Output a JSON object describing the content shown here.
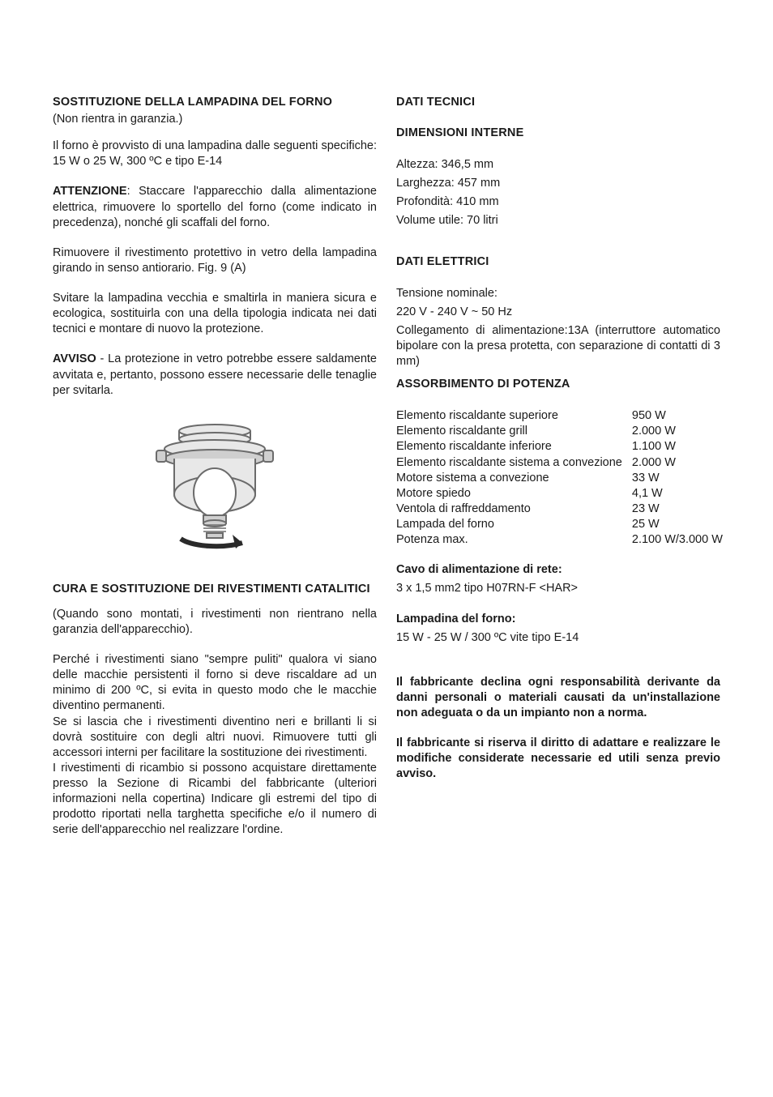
{
  "left": {
    "h1": "SOSTITUZIONE DELLA LAMPADINA DEL FORNO",
    "warranty": "(Non rientra in garanzia.)",
    "spec_intro": "Il forno è provvisto di una lampadina dalle seguenti specifiche: 15 W o 25 W, 300 ºC e tipo E-14",
    "attenzione_label": "ATTENZIONE",
    "attenzione_body": ": Staccare l'apparecchio dalla alimentazione elettrica, rimuovere lo sportello del forno (come indicato in precedenza), nonché gli scaffali del forno.",
    "p_remove": "Rimuovere il rivestimento protettivo in vetro della lampadina girando in senso antiorario. Fig. 9 (A)",
    "p_unscrew": "Svitare la lampadina vecchia e smaltirla in maniera sicura e ecologica, sostituirla con una della tipologia indicata nei dati tecnici e montare di nuovo la protezione.",
    "avviso_label": "AVVISO",
    "avviso_body": " - La protezione in vetro potrebbe essere saldamente avvitata e, pertanto, possono essere necessarie delle tenaglie per svitarla.",
    "h2": "CURA E SOSTITUZIONE DEI RIVESTIMENTI CATALITICI",
    "p_cat1": "(Quando sono montati, i rivestimenti non rientrano nella garanzia dell'apparecchio).",
    "p_cat2": "Perché i rivestimenti siano \"sempre puliti\" qualora vi siano delle macchie persistenti il forno si deve riscaldare ad un minimo di 200 ºC, si evita in questo modo che le macchie diventino permanenti.",
    "p_cat3": "Se si lascia che i rivestimenti diventino neri e brillanti li si dovrà sostituire con degli altri nuovi. Rimuovere tutti gli accessori interni per facilitare la sostituzione dei rivestimenti.",
    "p_cat4": "I rivestimenti di ricambio si possono acquistare direttamente presso la Sezione di Ricambi del fabbricante (ulteriori informazioni nella copertina) Indicare gli estremi del tipo di prodotto riportati nella targhetta specifiche e/o il numero di serie dell'apparecchio nel realizzare l'ordine."
  },
  "right": {
    "h_tech": "DATI TECNICI",
    "h_dim": "DIMENSIONI INTERNE",
    "dim1": "Altezza: 346,5 mm",
    "dim2": "Larghezza: 457 mm",
    "dim3": "Profondità: 410 mm",
    "dim4": "Volume utile: 70 litri",
    "h_elec": "DATI ELETTRICI",
    "elec1": "Tensione nominale:",
    "elec2": "220 V - 240 V ~ 50 Hz",
    "elec3": "Collegamento di alimentazione:13A (interruttore automatico bipolare con la presa protetta, con separazione di contatti di 3 mm)",
    "h_power": "ASSORBIMENTO DI POTENZA",
    "power_rows": [
      {
        "label": "Elemento riscaldante superiore",
        "value": "950 W"
      },
      {
        "label": "Elemento riscaldante grill",
        "value": "2.000 W"
      },
      {
        "label": "Elemento riscaldante inferiore",
        "value": "1.100 W"
      },
      {
        "label": "Elemento riscaldante sistema a convezione",
        "value": "2.000 W"
      },
      {
        "label": "Motore sistema a convezione",
        "value": "33 W"
      },
      {
        "label": "Motore spiedo",
        "value": "4,1 W"
      },
      {
        "label": "Ventola di raffreddamento",
        "value": "23 W"
      },
      {
        "label": "Lampada del forno",
        "value": "25 W"
      },
      {
        "label": "Potenza max.",
        "value": "2.100 W/3.000 W"
      }
    ],
    "h_cable": "Cavo di alimentazione di rete:",
    "cable_val": "3 x 1,5 mm2 tipo H07RN-F <HAR>",
    "h_lamp": "Lampadina del forno:",
    "lamp_val": "15 W - 25 W / 300 ºC vite tipo E-14",
    "disclaimer1": "Il fabbricante declina ogni responsabilità derivante da danni personali o materiali causati da un'installazione non adeguata o da un impianto non a norma.",
    "disclaimer2": "Il fabbricante si riserva il diritto di adattare e realizzare le modifiche considerate necessarie ed utili senza previo avviso."
  },
  "figure": {
    "stroke": "#6b6b6b",
    "fill_light": "#e8e8e8",
    "fill_mid": "#cfcfcf",
    "arrow_fill": "#2a2a2a"
  }
}
